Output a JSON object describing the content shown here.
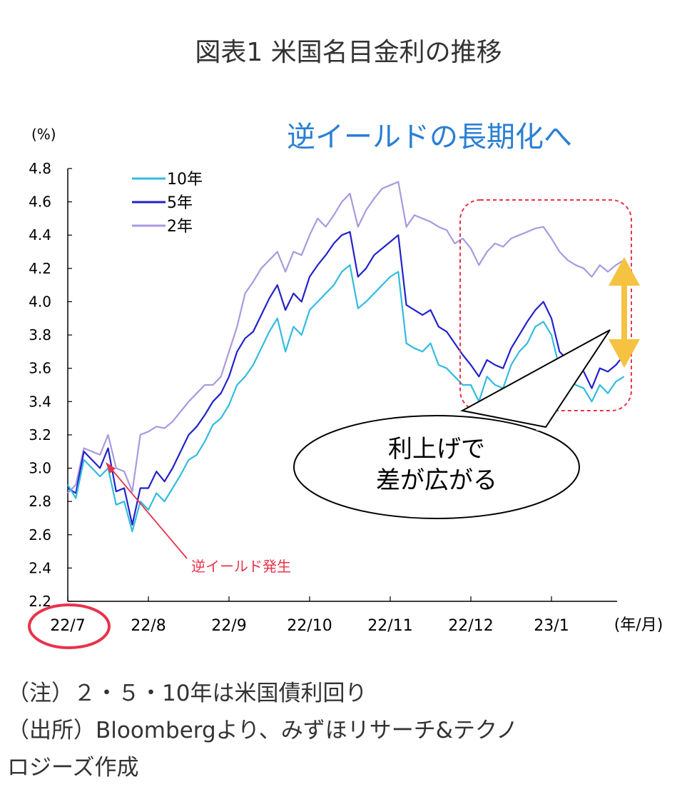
{
  "figure": {
    "title": "図表1 米国名目金利の推移",
    "notes": [
      "（注）２・５・10年は米国債利回り",
      "（出所）Bloombergより、みずほリサーチ&テクノ",
      "ロジーズ作成"
    ]
  },
  "chart_data": {
    "type": "line",
    "ylabel": "(%)",
    "xlabel": "(年/月)",
    "ylim": [
      2.2,
      4.8
    ],
    "yticks": [
      "2.2",
      "2.4",
      "2.6",
      "2.8",
      "3.0",
      "3.2",
      "3.4",
      "3.6",
      "3.8",
      "4.0",
      "4.2",
      "4.4",
      "4.6",
      "4.8"
    ],
    "categories": [
      "22/7",
      "22/8",
      "22/9",
      "22/10",
      "22/11",
      "22/12",
      "23/1"
    ],
    "legend": [
      "10年",
      "5年",
      "2年"
    ],
    "legend_position": "top-left",
    "colors": {
      "10y": "#33bbe0",
      "5y": "#2222cc",
      "2y": "#a999e0"
    },
    "annotations": {
      "headline": "逆イールドの長期化へ",
      "inversion_label": "逆イールド発生",
      "callout_line1": "利上げで",
      "callout_line2": "差が広がる",
      "headline_color": "#2a7fd4",
      "inversion_color": "#e8334a",
      "arrow_color": "#f5c242"
    },
    "x": [
      0,
      0.1,
      0.2,
      0.3,
      0.4,
      0.5,
      0.6,
      0.7,
      0.8,
      0.9,
      1.0,
      1.1,
      1.2,
      1.3,
      1.4,
      1.5,
      1.6,
      1.7,
      1.8,
      1.9,
      2.0,
      2.1,
      2.2,
      2.3,
      2.4,
      2.5,
      2.6,
      2.7,
      2.8,
      2.9,
      3.0,
      3.1,
      3.2,
      3.3,
      3.4,
      3.5,
      3.6,
      3.7,
      3.8,
      3.9,
      4.0,
      4.1,
      4.2,
      4.3,
      4.4,
      4.5,
      4.6,
      4.7,
      4.8,
      4.9,
      5.0,
      5.1,
      5.2,
      5.3,
      5.4,
      5.5,
      5.6,
      5.7,
      5.8,
      5.9,
      6.0,
      6.1,
      6.2,
      6.3,
      6.4,
      6.5,
      6.6,
      6.7,
      6.8,
      6.9
    ],
    "series": [
      {
        "name": "10年",
        "values": [
          2.9,
          2.82,
          3.05,
          3.0,
          2.95,
          3.0,
          2.78,
          2.8,
          2.62,
          2.8,
          2.75,
          2.85,
          2.8,
          2.88,
          2.96,
          3.05,
          3.08,
          3.16,
          3.26,
          3.3,
          3.38,
          3.5,
          3.55,
          3.62,
          3.72,
          3.82,
          3.9,
          3.7,
          3.85,
          3.8,
          3.95,
          4.0,
          4.05,
          4.1,
          4.18,
          4.22,
          3.96,
          4.0,
          4.05,
          4.1,
          4.15,
          4.18,
          3.75,
          3.72,
          3.7,
          3.75,
          3.62,
          3.6,
          3.55,
          3.5,
          3.5,
          3.4,
          3.55,
          3.5,
          3.48,
          3.62,
          3.7,
          3.75,
          3.85,
          3.88,
          3.8,
          3.6,
          3.55,
          3.5,
          3.48,
          3.4,
          3.5,
          3.45,
          3.52,
          3.55
        ]
      },
      {
        "name": "5年",
        "values": [
          2.88,
          2.85,
          3.1,
          3.05,
          3.0,
          3.12,
          2.86,
          2.88,
          2.66,
          2.88,
          2.88,
          2.98,
          2.92,
          3.0,
          3.1,
          3.2,
          3.25,
          3.32,
          3.4,
          3.45,
          3.55,
          3.7,
          3.78,
          3.82,
          3.92,
          4.02,
          4.1,
          3.95,
          4.05,
          4.0,
          4.15,
          4.22,
          4.28,
          4.35,
          4.4,
          4.42,
          4.15,
          4.2,
          4.28,
          4.32,
          4.36,
          4.4,
          3.98,
          3.95,
          3.92,
          3.95,
          3.85,
          3.82,
          3.75,
          3.68,
          3.62,
          3.55,
          3.65,
          3.62,
          3.6,
          3.72,
          3.8,
          3.88,
          3.95,
          4.0,
          3.9,
          3.7,
          3.65,
          3.62,
          3.58,
          3.48,
          3.6,
          3.58,
          3.62,
          3.68
        ]
      },
      {
        "name": "2年",
        "values": [
          2.85,
          2.9,
          3.12,
          3.1,
          3.08,
          3.2,
          3.0,
          2.98,
          2.86,
          3.2,
          3.22,
          3.25,
          3.24,
          3.28,
          3.34,
          3.4,
          3.45,
          3.5,
          3.5,
          3.55,
          3.7,
          3.85,
          4.05,
          4.12,
          4.2,
          4.25,
          4.3,
          4.18,
          4.3,
          4.28,
          4.4,
          4.5,
          4.45,
          4.52,
          4.6,
          4.65,
          4.45,
          4.55,
          4.62,
          4.68,
          4.7,
          4.72,
          4.45,
          4.52,
          4.5,
          4.48,
          4.45,
          4.43,
          4.35,
          4.38,
          4.32,
          4.22,
          4.3,
          4.35,
          4.33,
          4.38,
          4.4,
          4.42,
          4.44,
          4.45,
          4.38,
          4.3,
          4.25,
          4.22,
          4.2,
          4.15,
          4.22,
          4.18,
          4.22,
          4.25
        ]
      }
    ]
  }
}
